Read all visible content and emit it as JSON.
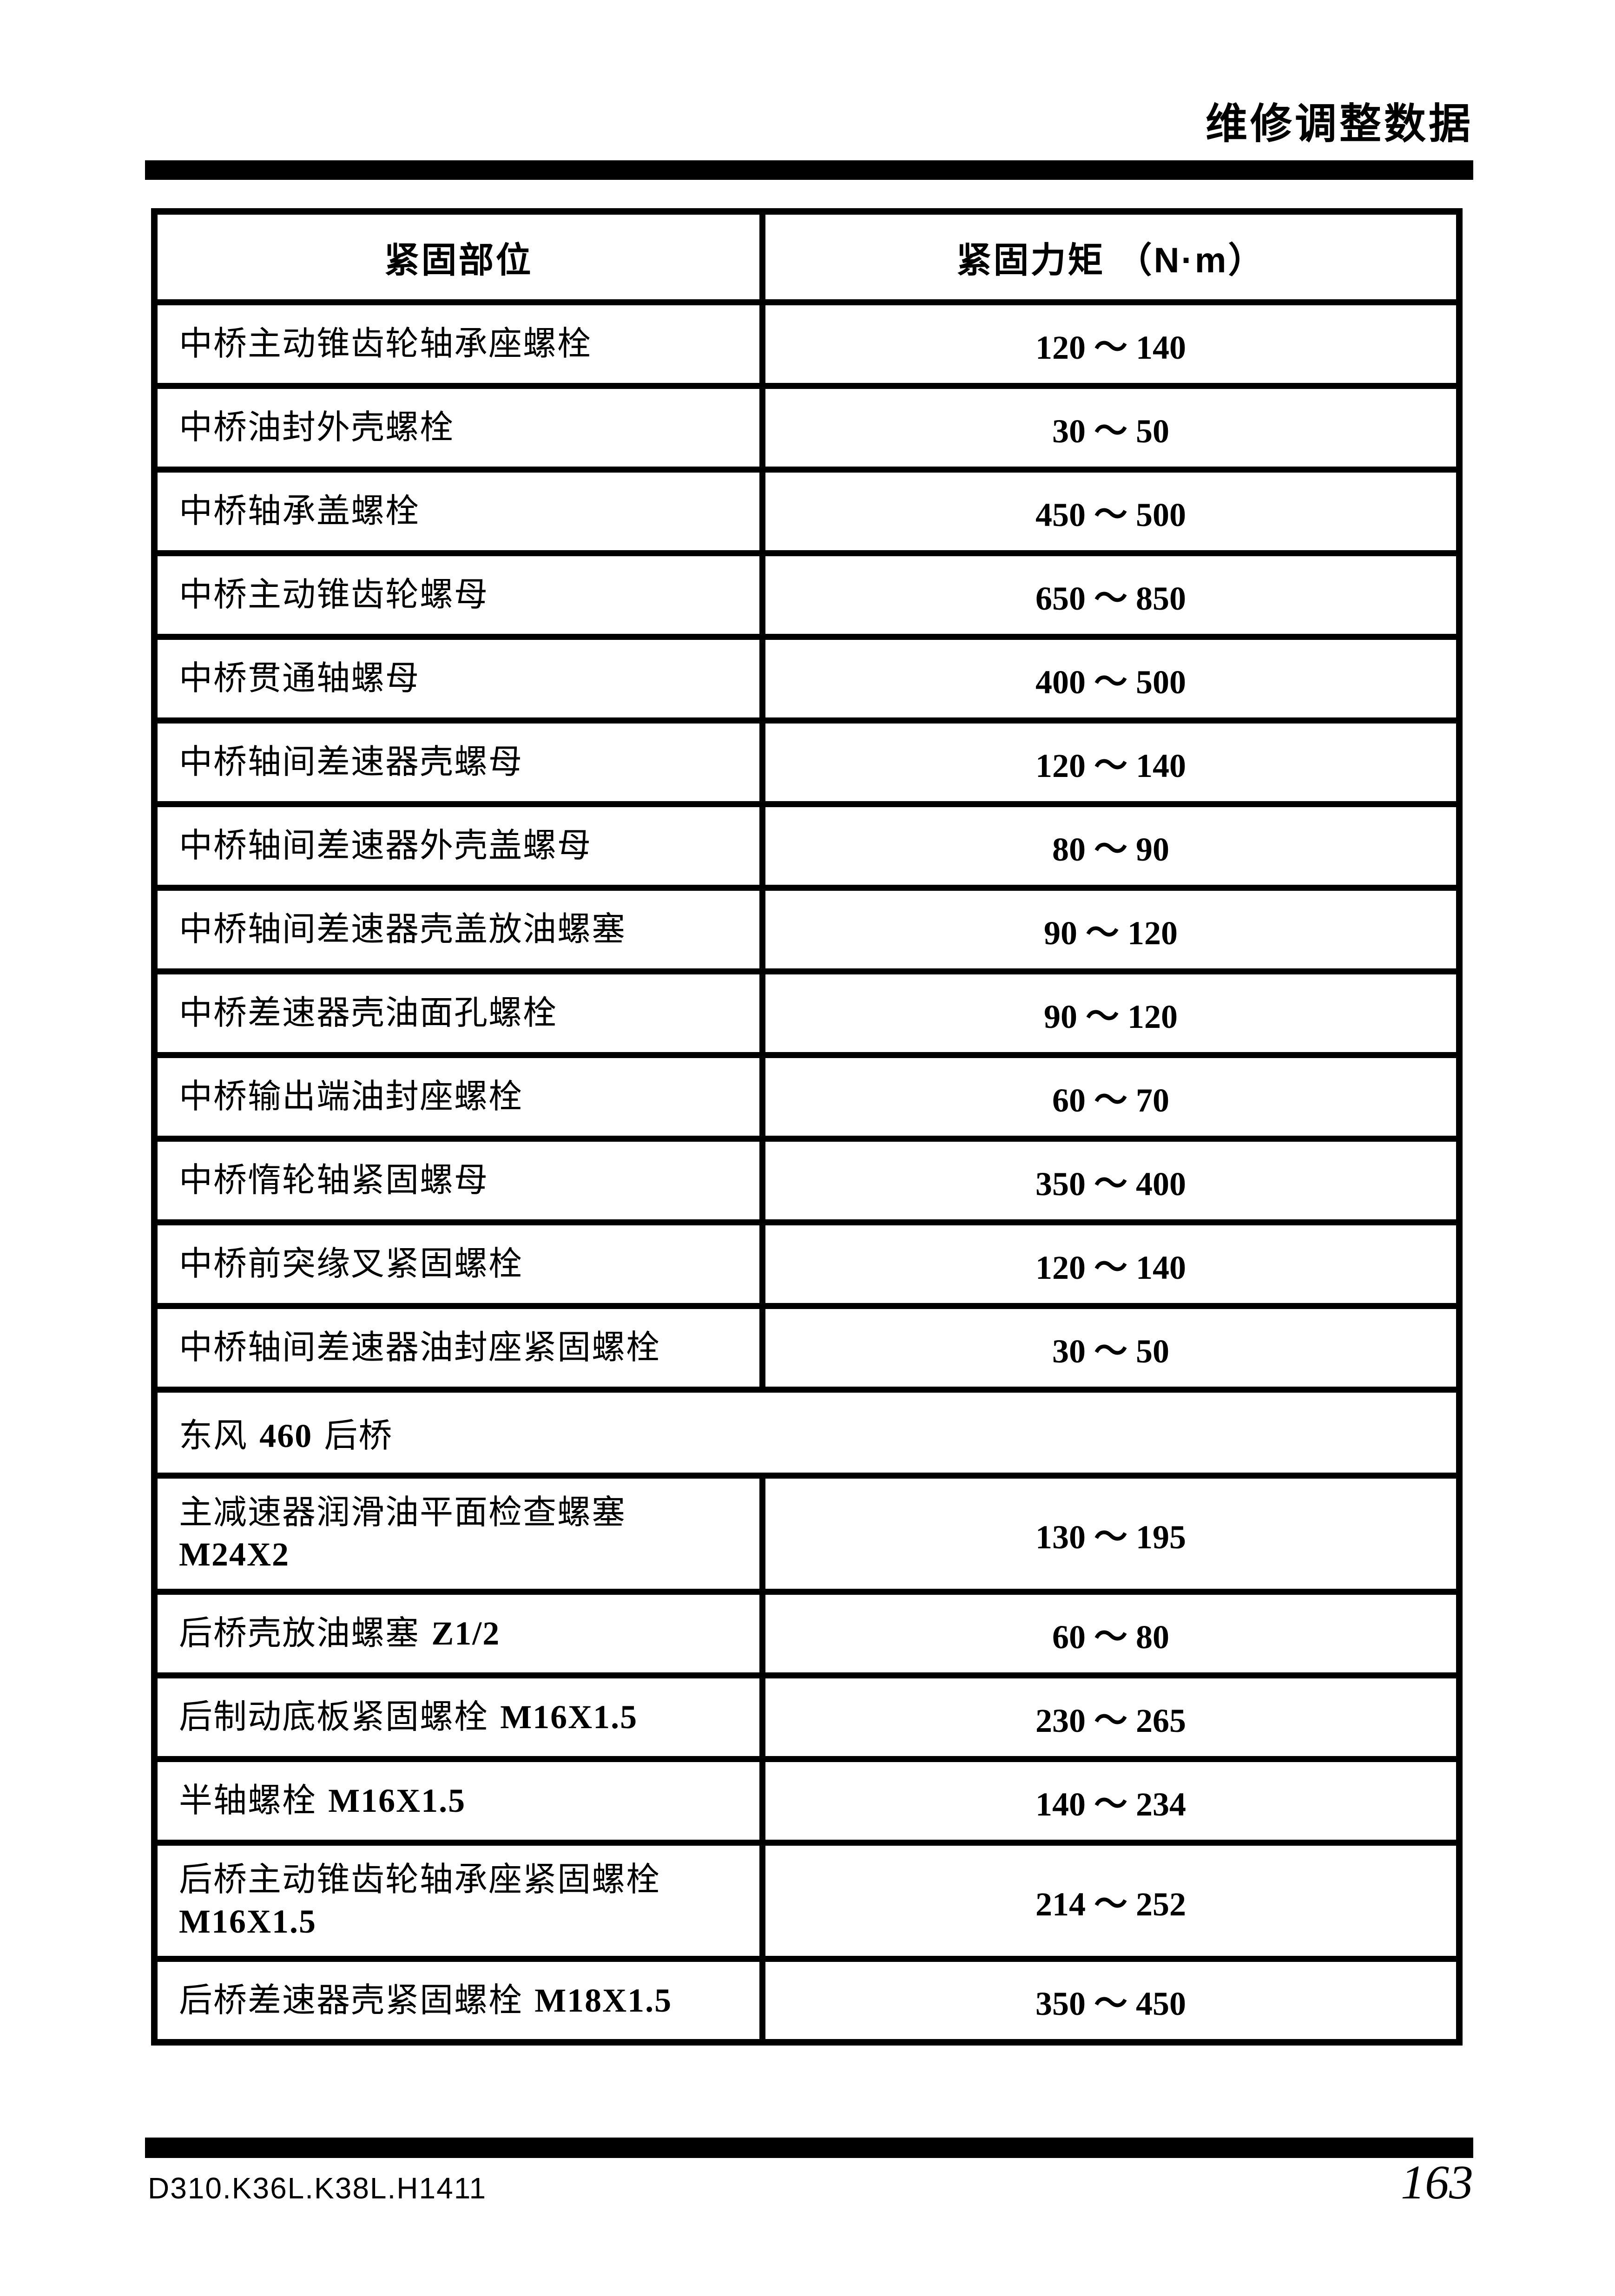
{
  "page": {
    "header_title": "维修调整数据",
    "footer_doc_code": "D310.K36L.K38L.H1411",
    "footer_page_number": "163",
    "text_color": "#000000",
    "background_color": "#ffffff",
    "rule_color": "#000000"
  },
  "table": {
    "col1_header": "紧固部位",
    "col2_header": "紧固力矩 （N·m）",
    "rows": [
      {
        "kind": "data",
        "label": "中桥主动锥齿轮轴承座螺栓",
        "code": "",
        "code_on_new_line": false,
        "value": "120 ～ 140"
      },
      {
        "kind": "data",
        "label": "中桥油封外壳螺栓",
        "code": "",
        "code_on_new_line": false,
        "value": "30 ～ 50"
      },
      {
        "kind": "data",
        "label": "中桥轴承盖螺栓",
        "code": "",
        "code_on_new_line": false,
        "value": "450 ～ 500"
      },
      {
        "kind": "data",
        "label": "中桥主动锥齿轮螺母",
        "code": "",
        "code_on_new_line": false,
        "value": "650 ～ 850"
      },
      {
        "kind": "data",
        "label": "中桥贯通轴螺母",
        "code": "",
        "code_on_new_line": false,
        "value": "400 ～ 500"
      },
      {
        "kind": "data",
        "label": "中桥轴间差速器壳螺母",
        "code": "",
        "code_on_new_line": false,
        "value": "120 ～ 140"
      },
      {
        "kind": "data",
        "label": "中桥轴间差速器外壳盖螺母",
        "code": "",
        "code_on_new_line": false,
        "value": "80 ～ 90"
      },
      {
        "kind": "data",
        "label": "中桥轴间差速器壳盖放油螺塞",
        "code": "",
        "code_on_new_line": false,
        "value": "90 ～ 120"
      },
      {
        "kind": "data",
        "label": "中桥差速器壳油面孔螺栓",
        "code": "",
        "code_on_new_line": false,
        "value": "90 ～ 120"
      },
      {
        "kind": "data",
        "label": "中桥输出端油封座螺栓",
        "code": "",
        "code_on_new_line": false,
        "value": "60 ～ 70"
      },
      {
        "kind": "data",
        "label": "中桥惰轮轴紧固螺母",
        "code": "",
        "code_on_new_line": false,
        "value": "350 ～ 400"
      },
      {
        "kind": "data",
        "label": "中桥前突缘叉紧固螺栓",
        "code": "",
        "code_on_new_line": false,
        "value": "120 ～ 140"
      },
      {
        "kind": "data",
        "label": "中桥轴间差速器油封座紧固螺栓",
        "code": "",
        "code_on_new_line": false,
        "value": "30 ～ 50"
      },
      {
        "kind": "section",
        "label": "东风",
        "code": "460",
        "label_after": "后桥"
      },
      {
        "kind": "data",
        "label": "主减速器润滑油平面检查螺塞",
        "code": "M24X2",
        "code_on_new_line": true,
        "value": "130 ～ 195"
      },
      {
        "kind": "data",
        "label": "后桥壳放油螺塞",
        "code": "Z1/2",
        "code_on_new_line": false,
        "value": "60 ～ 80"
      },
      {
        "kind": "data",
        "label": "后制动底板紧固螺栓",
        "code": "M16X1.5",
        "code_on_new_line": false,
        "value": "230 ～ 265"
      },
      {
        "kind": "data",
        "label": "半轴螺栓",
        "code": "M16X1.5",
        "code_on_new_line": false,
        "value": "140 ～ 234"
      },
      {
        "kind": "data",
        "label": "后桥主动锥齿轮轴承座紧固螺栓",
        "code": "M16X1.5",
        "code_on_new_line": true,
        "value": "214 ～ 252"
      },
      {
        "kind": "data",
        "label": "后桥差速器壳紧固螺栓",
        "code": "M18X1.5",
        "code_on_new_line": false,
        "value": "350 ～ 450"
      }
    ]
  }
}
